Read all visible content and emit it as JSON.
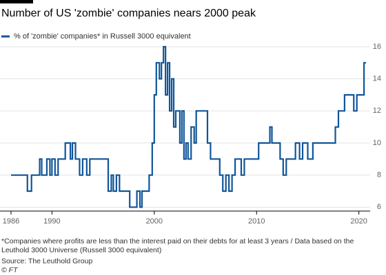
{
  "chart_data": {
    "type": "line",
    "title": "Number of US 'zombie' companies nears 2000 peak",
    "x": [
      1986,
      1987.6,
      1988,
      1988.8,
      1989,
      1989.5,
      1989.8,
      1990,
      1990.3,
      1990.6,
      1991.3,
      1991.8,
      1992,
      1992.3,
      1992.7,
      1993,
      1993.4,
      1993.7,
      1995.5,
      1995.8,
      1996,
      1996.3,
      1996.6,
      1997.6,
      1998.3,
      1998.6,
      1998.8,
      1999.5,
      1999.8,
      2000,
      2000.2,
      2000.5,
      2000.7,
      2000.9,
      2001.1,
      2001.3,
      2001.5,
      2001.7,
      2001.9,
      2002.1,
      2002.5,
      2002.7,
      2002.9,
      2003.1,
      2003.3,
      2003.6,
      2003.9,
      2004.1,
      2005.2,
      2005.5,
      2006.4,
      2006.7,
      2007,
      2007.3,
      2007.6,
      2007.9,
      2008.5,
      2008.8,
      2010.2,
      2011.3,
      2011.5,
      2012.3,
      2012.6,
      2012.9,
      2013.8,
      2014.2,
      2014.5,
      2015,
      2015.5,
      2017.7,
      2018,
      2018.6,
      2019.5,
      2019.8,
      2020.5,
      2020.7
    ],
    "series": [
      {
        "name": "% of 'zombie' companies* in Russell 3000 equivalent",
        "color": "#0f5499",
        "values": [
          8,
          7,
          8,
          9,
          8,
          9,
          8,
          9,
          8,
          9,
          10,
          9,
          10,
          9,
          8,
          9,
          8,
          9,
          7,
          8,
          7,
          8,
          7,
          6,
          7,
          6,
          7,
          8,
          10,
          13,
          15,
          14,
          15,
          16,
          13,
          15,
          12,
          14,
          11,
          12,
          10,
          12,
          9,
          10,
          9,
          11,
          10,
          12,
          10,
          9,
          8,
          7,
          8,
          7,
          8,
          9,
          8,
          9,
          10,
          11,
          10,
          9,
          8,
          9,
          10,
          9,
          10,
          9,
          10,
          11,
          12,
          13,
          12,
          13,
          15,
          15
        ]
      }
    ],
    "xlim": [
      1986,
      2021.1
    ],
    "xticks": [
      1986,
      1990,
      2000,
      2010,
      2020
    ],
    "ylim": [
      5.8,
      16.3
    ],
    "yticks": [
      6,
      8,
      10,
      12,
      14,
      16
    ],
    "step": true,
    "grid": true,
    "note": "*Companies where profits are less than the interest paid on their debts for at least 3 years / Data based on the Leuthold 3000 Universe (Russell 3000 equivalent)",
    "source": "Source: The Leuthold Group",
    "credit": "© FT"
  }
}
